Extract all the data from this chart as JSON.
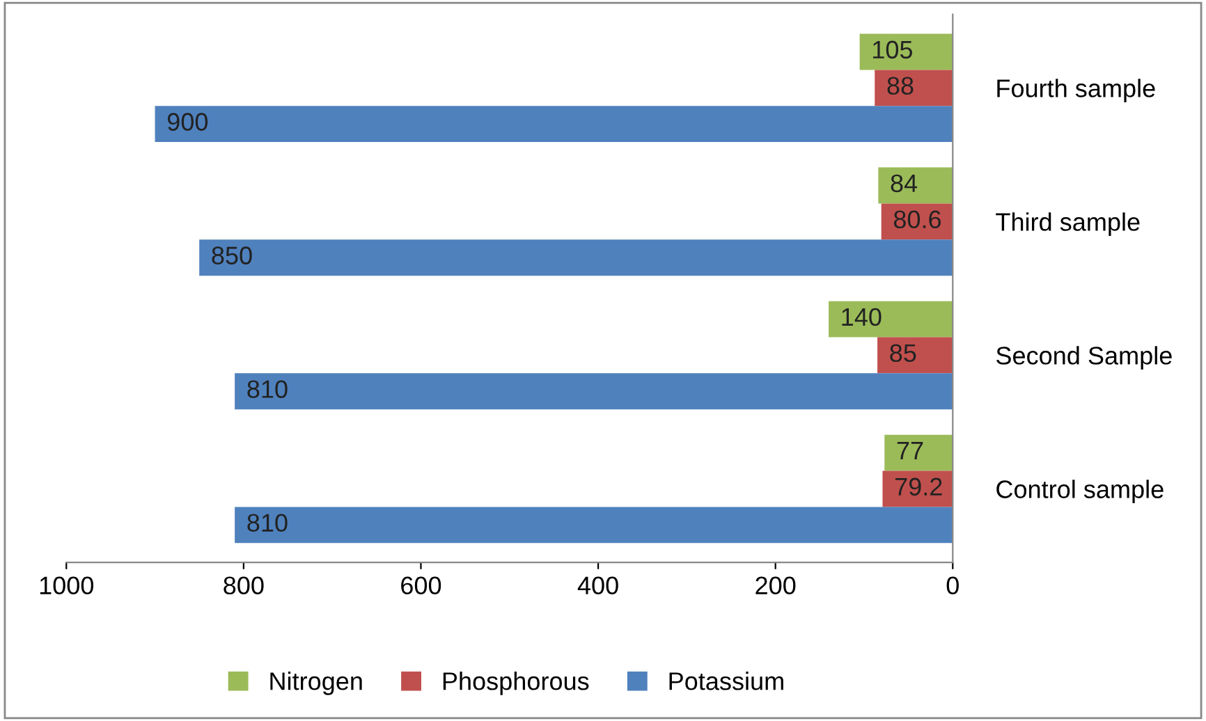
{
  "chart_data": {
    "type": "bar",
    "orientation": "horizontal",
    "categories": [
      "Fourth sample",
      "Third sample",
      "Second Sample",
      "Control sample"
    ],
    "series": [
      {
        "name": "Nitrogen",
        "color": "#9bbb59",
        "values": [
          105,
          84,
          140,
          77
        ]
      },
      {
        "name": "Phosphorous",
        "color": "#c0504d",
        "values": [
          88,
          80.6,
          85,
          79.2
        ]
      },
      {
        "name": "Potassium",
        "color": "#4f81bd",
        "values": [
          900,
          850,
          810,
          810
        ]
      }
    ],
    "xlim": [
      1000,
      0
    ],
    "xticks": [
      1000,
      800,
      600,
      400,
      200,
      0
    ],
    "data_labels": true,
    "legend": "bottom",
    "grid": false
  }
}
